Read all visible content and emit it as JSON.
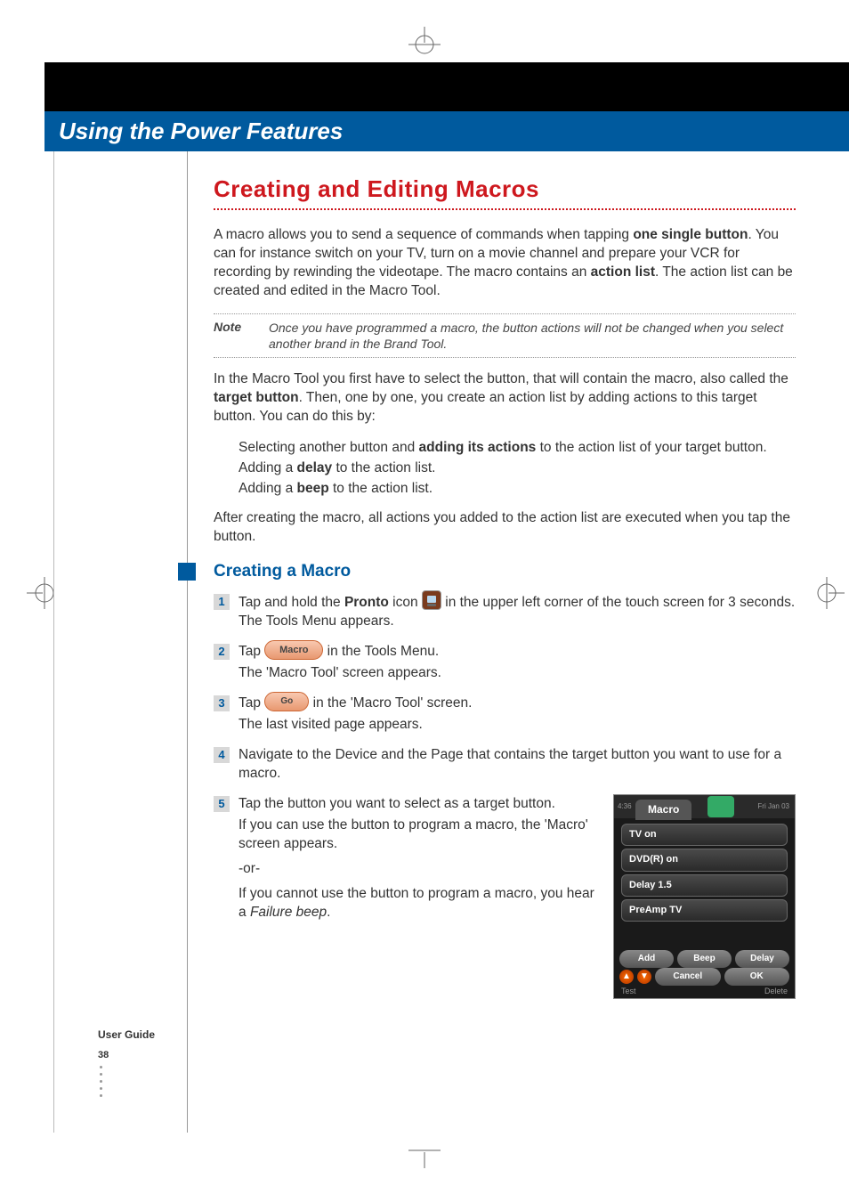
{
  "page": {
    "chapter_title": "Using the Power Features",
    "section_title": "Creating and Editing Macros",
    "intro_html": "A macro allows you to send a sequence of commands when tapping <b>one single button</b>. You can for instance switch on your TV, turn on a movie channel and prepare your VCR for recording by rewinding the videotape. The macro contains an <b>action list</b>. The action list can be created and edited in the Macro Tool.",
    "note_label": "Note",
    "note_text": "Once you have programmed a macro, the button actions will not be changed when you select another brand in the Brand Tool.",
    "para2_html": "In the Macro Tool you first have to select the button, that will contain the macro, also called the <b>target button</b>. Then, one by one, you create an action list by adding actions to this target button. You can do this by:",
    "bullets": [
      "Selecting another button and <b>adding its actions</b> to the action list of your target button.",
      "Adding a <b>delay</b> to the action list.",
      "Adding a <b>beep</b> to the action list."
    ],
    "para3": "After creating the macro, all actions you added to the action list are executed when you tap the button.",
    "subsection_title": "Creating a Macro",
    "steps": {
      "s1": {
        "pre": "Tap and hold the ",
        "bold": "Pronto",
        "mid": " icon ",
        "post": " in the upper left corner of the touch screen for 3 seconds.",
        "sub": " The Tools Menu appears."
      },
      "s2": {
        "pre": "Tap ",
        "post": " in the Tools Menu.",
        "sub": "The 'Macro Tool' screen appears.",
        "btn_label": "Macro"
      },
      "s3": {
        "pre": "Tap ",
        "post": " in the 'Macro Tool' screen.",
        "sub": "The last visited page appears.",
        "btn_label": "Go"
      },
      "s4": {
        "text": "Navigate to the Device and the Page that contains the target button you want to use for a macro."
      },
      "s5": {
        "main": "Tap the button you want to select as a target button.",
        "sub1": "If you can use the button to program a macro, the 'Macro' screen appears.",
        "or": "-or-",
        "sub2_pre": "If you cannot use the button to program a macro, you hear a ",
        "sub2_italic": "Failure beep",
        "sub2_post": "."
      }
    },
    "user_guide_label": "User Guide",
    "page_number": "38"
  },
  "macro_screen": {
    "tab_label": "Macro",
    "time": "Fri Jan 03",
    "left_ind": "4:36",
    "items": [
      "TV on",
      "DVD(R) on",
      "Delay 1.5",
      "PreAmp TV"
    ],
    "btn_add": "Add",
    "btn_beep": "Beep",
    "btn_delay": "Delay",
    "btn_cancel": "Cancel",
    "btn_ok": "OK",
    "label_test": "Test",
    "label_delete": "Delete"
  },
  "colors": {
    "brand_blue": "#005a9e",
    "brand_red": "#ce181e",
    "black": "#000000",
    "text": "#333333",
    "step_num_bg": "#d8d8d8"
  }
}
